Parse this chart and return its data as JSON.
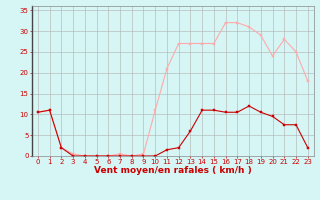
{
  "x": [
    0,
    1,
    2,
    3,
    4,
    5,
    6,
    7,
    8,
    9,
    10,
    11,
    12,
    13,
    14,
    15,
    16,
    17,
    18,
    19,
    20,
    21,
    22,
    23
  ],
  "wind_avg": [
    10.5,
    11,
    2,
    0,
    0,
    0,
    0,
    0,
    0,
    0,
    0,
    1.5,
    2,
    6,
    11,
    11,
    10.5,
    10.5,
    12,
    10.5,
    9.5,
    7.5,
    7.5,
    2
  ],
  "wind_gust": [
    10.5,
    11,
    2,
    0.5,
    0,
    0,
    0,
    0.5,
    0,
    0.5,
    11,
    21,
    27,
    27,
    27,
    27,
    32,
    32,
    31,
    29,
    24,
    28,
    25,
    18
  ],
  "avg_color": "#cc0000",
  "gust_color": "#ffaaaa",
  "bg_color": "#d6f5f5",
  "grid_color": "#b0b0b0",
  "xlabel": "Vent moyen/en rafales ( km/h )",
  "ylabel_ticks": [
    0,
    5,
    10,
    15,
    20,
    25,
    30,
    35
  ],
  "ylim": [
    0,
    36
  ],
  "xlim": [
    -0.5,
    23.5
  ],
  "tick_color": "#cc0000",
  "label_color": "#cc0000",
  "tick_fontsize": 5.0,
  "xlabel_fontsize": 6.5
}
